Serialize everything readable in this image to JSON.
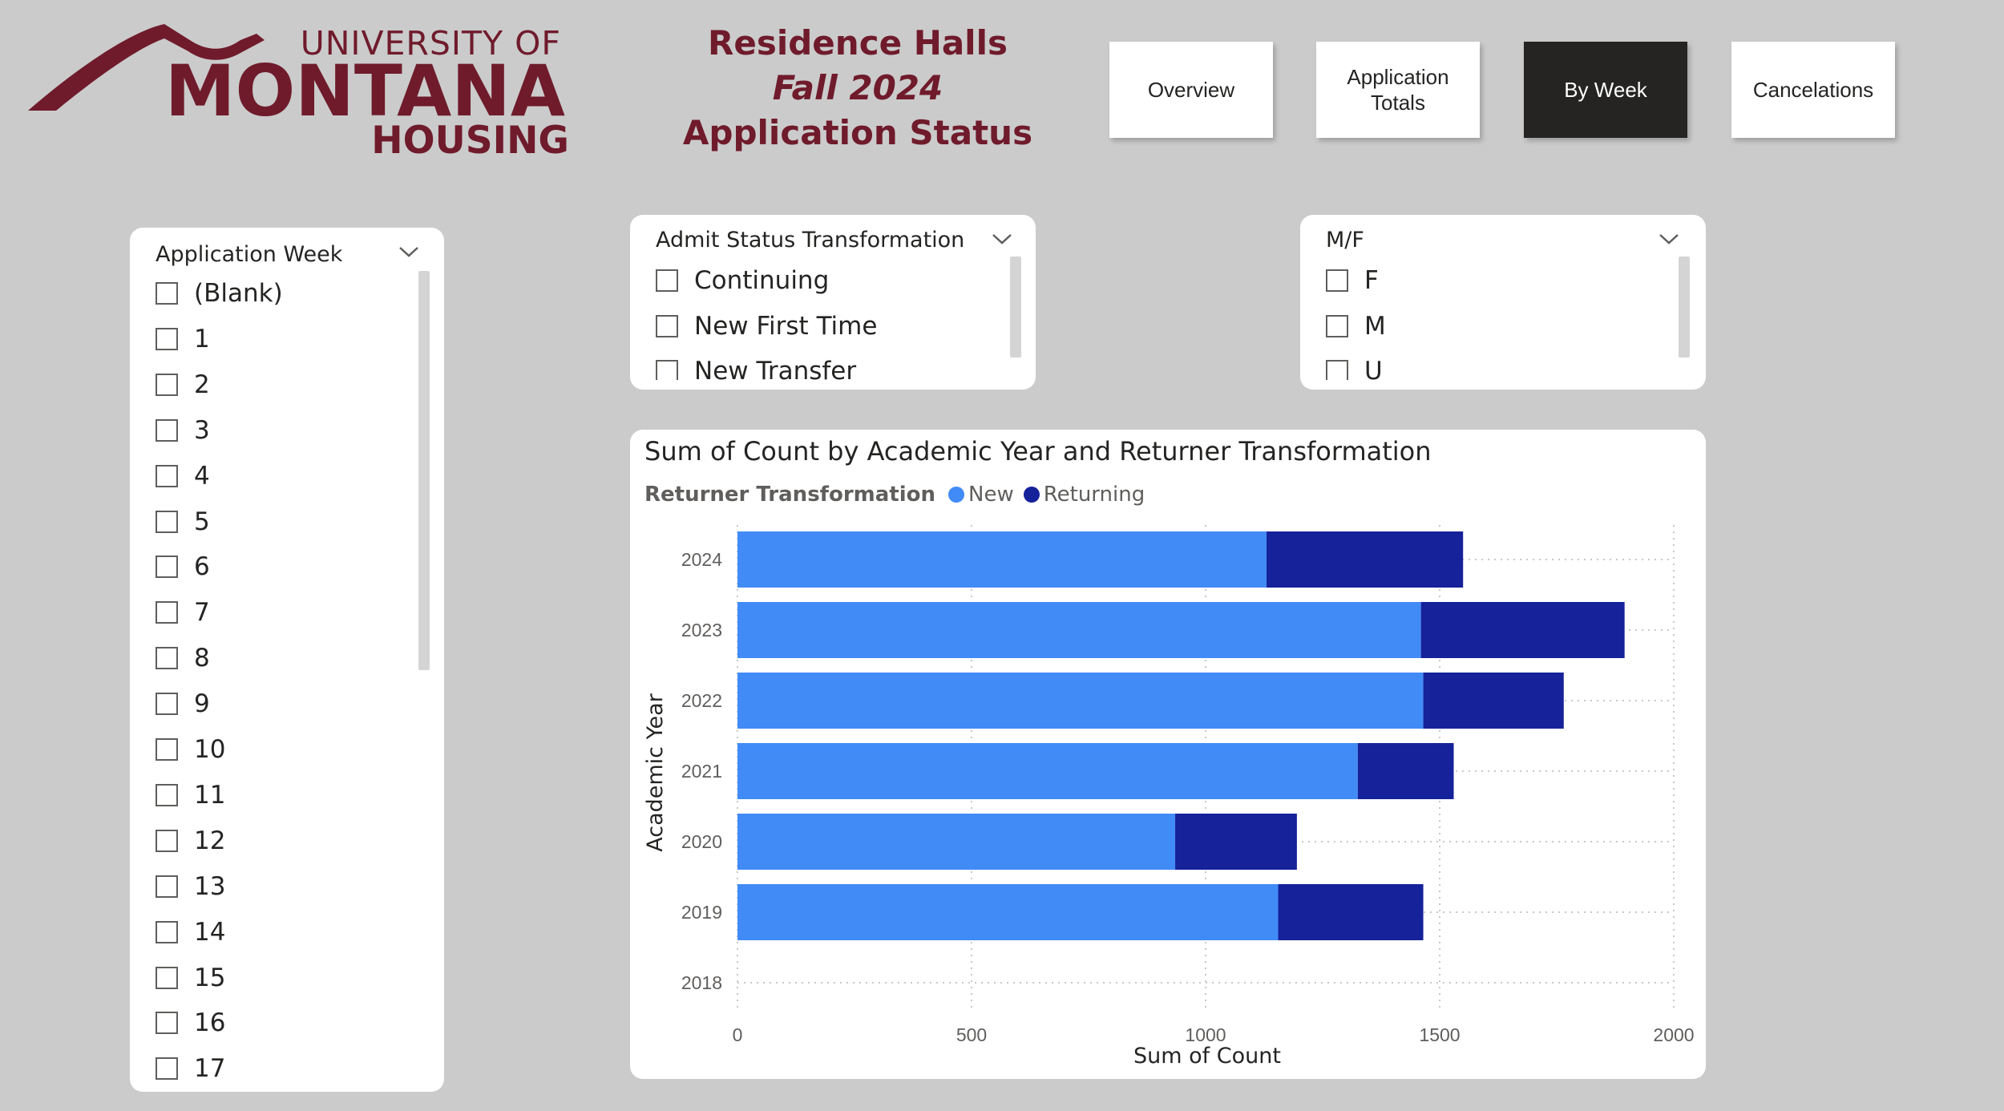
{
  "logo": {
    "line1": "UNIVERSITY OF",
    "line2": "MONTANA",
    "line3": "HOUSING"
  },
  "title": {
    "line1": "Residence Halls",
    "line2": "Fall 2024",
    "line3": "Application Status"
  },
  "nav": {
    "overview": "Overview",
    "totals_line1": "Application",
    "totals_line2": "Totals",
    "by_week": "By Week",
    "cancelations": "Cancelations",
    "active": "By Week"
  },
  "slicers": {
    "week": {
      "header": "Application Week",
      "items": [
        "(Blank)",
        "1",
        "2",
        "3",
        "4",
        "5",
        "6",
        "7",
        "8",
        "9",
        "10",
        "11",
        "12",
        "13",
        "14",
        "15",
        "16",
        "17"
      ]
    },
    "admit": {
      "header": "Admit Status Transformation",
      "items": [
        "Continuing",
        "New First Time",
        "New Transfer"
      ]
    },
    "gender": {
      "header": "M/F",
      "items": [
        "F",
        "M",
        "U"
      ]
    }
  },
  "chart": {
    "title": "Sum of Count by Academic Year and Returner Transformation",
    "legend_title": "Returner Transformation"
  },
  "colors": {
    "brand": "#6f1b2c",
    "new": "#418bf6",
    "returning": "#15229a",
    "active_button": "#252423"
  },
  "chart_data": {
    "type": "bar",
    "orientation": "horizontal",
    "stacked": true,
    "title": "Sum of Count by Academic Year and Returner Transformation",
    "xlabel": "Sum of Count",
    "ylabel": "Academic Year",
    "xlim": [
      0,
      2000
    ],
    "xticks": [
      "0",
      "500",
      "1000",
      "1500",
      "2000"
    ],
    "categories": [
      "2024",
      "2023",
      "2022",
      "2021",
      "2020",
      "2019",
      "2018"
    ],
    "series": [
      {
        "name": "New",
        "values": [
          1130,
          1460,
          1465,
          1325,
          935,
          1155,
          0
        ]
      },
      {
        "name": "Returning",
        "values": [
          420,
          435,
          300,
          205,
          260,
          310,
          0
        ]
      }
    ],
    "legend_position": "top-left",
    "grid": true
  }
}
